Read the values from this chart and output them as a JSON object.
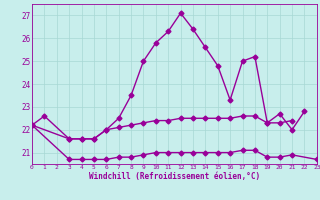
{
  "xlabel": "Windchill (Refroidissement éolien,°C)",
  "hours": [
    0,
    1,
    2,
    3,
    4,
    5,
    6,
    7,
    8,
    9,
    10,
    11,
    12,
    13,
    14,
    15,
    16,
    17,
    18,
    19,
    20,
    21,
    22,
    23
  ],
  "line1": [
    22.2,
    22.6,
    null,
    21.6,
    21.6,
    21.6,
    22.0,
    22.5,
    23.5,
    25.0,
    25.8,
    26.3,
    27.1,
    26.4,
    25.6,
    24.8,
    23.3,
    25.0,
    25.2,
    22.3,
    22.7,
    22.0,
    22.8,
    null
  ],
  "line2": [
    22.2,
    null,
    null,
    21.6,
    21.6,
    21.6,
    22.0,
    22.1,
    22.2,
    22.3,
    22.4,
    22.4,
    22.5,
    22.5,
    22.5,
    22.5,
    22.5,
    22.6,
    22.6,
    22.3,
    22.3,
    22.4,
    null,
    null
  ],
  "line3": [
    22.2,
    null,
    null,
    20.7,
    20.7,
    20.7,
    20.7,
    20.8,
    20.8,
    20.9,
    21.0,
    21.0,
    21.0,
    21.0,
    21.0,
    21.0,
    21.0,
    21.1,
    21.1,
    20.8,
    20.8,
    20.9,
    null,
    20.7
  ],
  "xlim": [
    0,
    23
  ],
  "ylim": [
    20.5,
    27.5
  ],
  "yticks": [
    21,
    22,
    23,
    24,
    25,
    26,
    27
  ],
  "bg_color": "#c8eeec",
  "grid_color": "#a8d8d4",
  "line_color": "#990099",
  "line_width": 1.0,
  "marker": "D",
  "marker_size": 2.5
}
